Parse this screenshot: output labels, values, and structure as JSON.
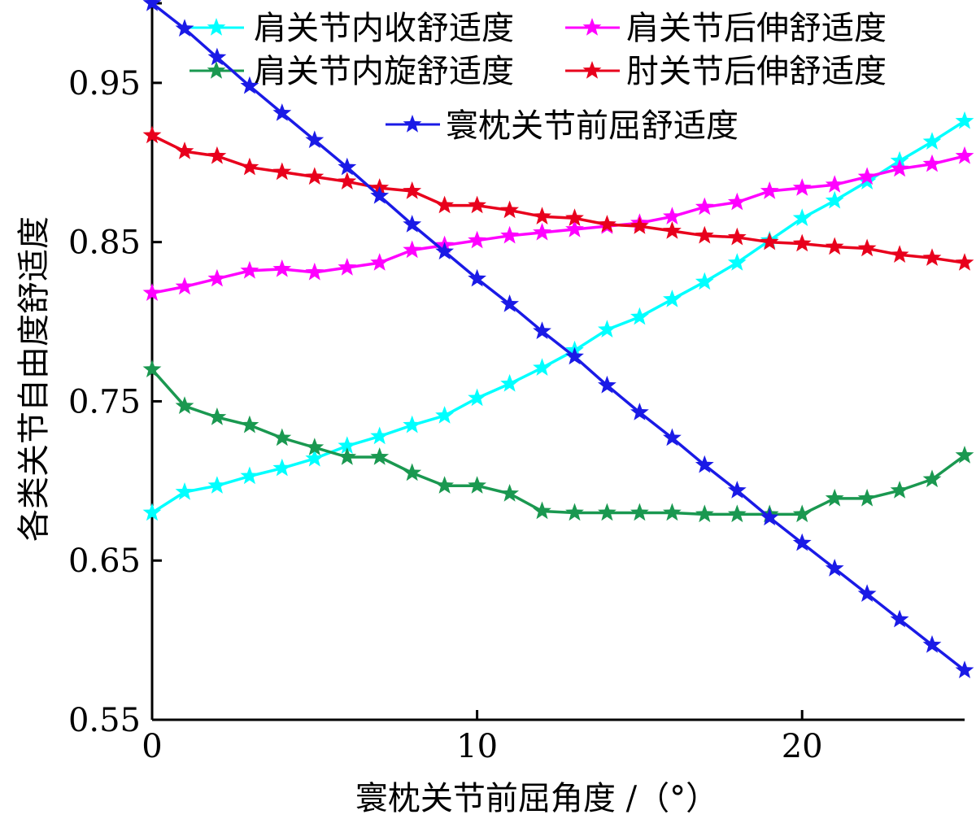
{
  "chart_data": {
    "type": "line",
    "title": "",
    "xlabel": "寰枕关节前屈角度 /（°）",
    "ylabel": "各类关节自由度舒适度",
    "xlim": [
      0,
      25
    ],
    "ylim": [
      0.55,
      1.0
    ],
    "xticks": [
      0,
      10,
      20
    ],
    "yticks": [
      0.55,
      0.65,
      0.75,
      0.85,
      0.95
    ],
    "xtick_labels": [
      "0",
      "10",
      "20"
    ],
    "ytick_labels": [
      "0.55",
      "0.65",
      "0.75",
      "0.85",
      "0.95"
    ],
    "grid": false,
    "legend_position": "top",
    "marker": "star",
    "x": [
      0,
      1,
      2,
      3,
      4,
      5,
      6,
      7,
      8,
      9,
      10,
      11,
      12,
      13,
      14,
      15,
      16,
      17,
      18,
      19,
      20,
      21,
      22,
      23,
      24,
      25
    ],
    "series": [
      {
        "name": "肩关节内收舒适度",
        "color": "#00ffff",
        "values": [
          0.68,
          0.693,
          0.697,
          0.703,
          0.708,
          0.714,
          0.722,
          0.728,
          0.735,
          0.741,
          0.752,
          0.761,
          0.771,
          0.782,
          0.795,
          0.803,
          0.814,
          0.825,
          0.837,
          0.851,
          0.865,
          0.876,
          0.888,
          0.901,
          0.913,
          0.926
        ]
      },
      {
        "name": "肩关节后伸舒适度",
        "color": "#ff00ff",
        "values": [
          0.818,
          0.822,
          0.827,
          0.832,
          0.833,
          0.831,
          0.834,
          0.837,
          0.845,
          0.848,
          0.851,
          0.854,
          0.856,
          0.858,
          0.86,
          0.862,
          0.866,
          0.872,
          0.875,
          0.882,
          0.884,
          0.886,
          0.891,
          0.896,
          0.899,
          0.904
        ]
      },
      {
        "name": "肩关节内旋舒适度",
        "color": "#1a9850",
        "values": [
          0.77,
          0.747,
          0.74,
          0.735,
          0.727,
          0.721,
          0.715,
          0.715,
          0.705,
          0.697,
          0.697,
          0.692,
          0.681,
          0.68,
          0.68,
          0.68,
          0.68,
          0.679,
          0.679,
          0.679,
          0.679,
          0.689,
          0.689,
          0.694,
          0.701,
          0.716
        ]
      },
      {
        "name": "肘关节后伸舒适度",
        "color": "#e8001c",
        "values": [
          0.917,
          0.907,
          0.904,
          0.897,
          0.894,
          0.891,
          0.888,
          0.884,
          0.882,
          0.873,
          0.873,
          0.87,
          0.866,
          0.865,
          0.861,
          0.86,
          0.857,
          0.854,
          0.853,
          0.85,
          0.849,
          0.847,
          0.846,
          0.842,
          0.84,
          0.837
        ]
      },
      {
        "name": "寰枕关节前屈舒适度",
        "color": "#1a1ae6",
        "values": [
          1.0,
          0.984,
          0.966,
          0.948,
          0.931,
          0.914,
          0.897,
          0.879,
          0.861,
          0.844,
          0.827,
          0.811,
          0.794,
          0.778,
          0.76,
          0.743,
          0.727,
          0.71,
          0.694,
          0.677,
          0.661,
          0.645,
          0.629,
          0.613,
          0.597,
          0.581
        ]
      }
    ]
  }
}
